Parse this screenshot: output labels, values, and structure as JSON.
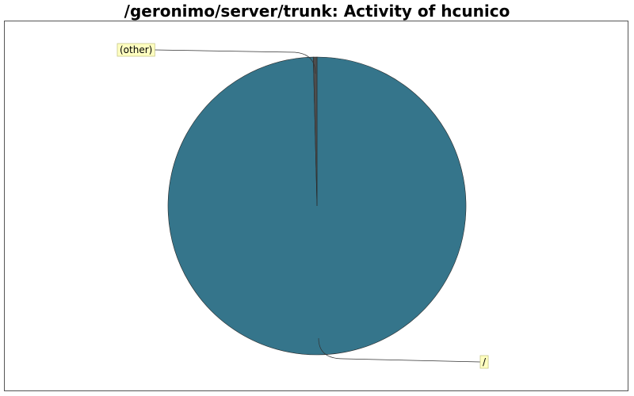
{
  "chart_data": {
    "type": "pie",
    "title": "/geronimo/server/trunk: Activity of hcunico",
    "slices": [
      {
        "label": "/",
        "value": 99.6
      },
      {
        "label": "(other)",
        "value": 0.4
      }
    ],
    "colors": {
      "main_slice": "#35758b",
      "other_slice": "#4d4d4d",
      "label_bg": "#ffffc0"
    },
    "legend": "none"
  }
}
